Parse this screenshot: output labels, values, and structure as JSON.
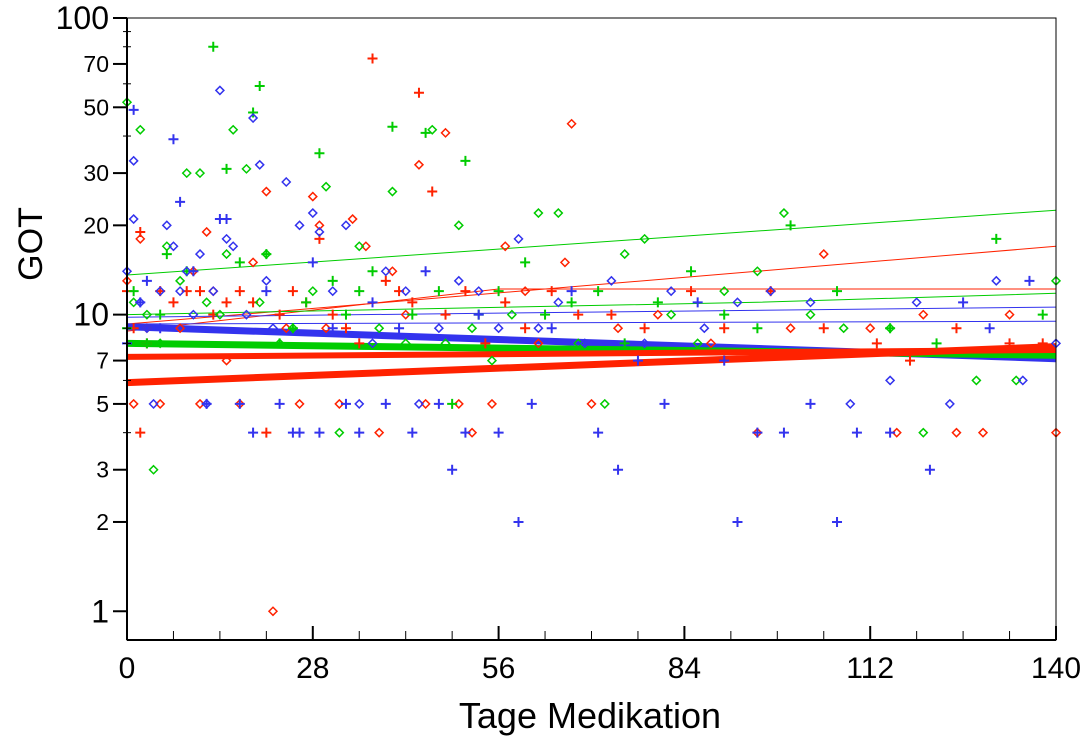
{
  "chart_data": {
    "type": "scatter",
    "title": "",
    "xlabel": "Tage Medikation",
    "ylabel": "GOT",
    "x_scale": "linear",
    "y_scale": "log",
    "xlim": [
      0,
      140
    ],
    "ylim": [
      0.8,
      100
    ],
    "x_ticks": [
      0,
      28,
      56,
      84,
      112,
      140
    ],
    "x_tick_labels": [
      "0",
      "28",
      "56",
      "84",
      "112",
      "140"
    ],
    "y_ticks": [
      1,
      2,
      3,
      5,
      7,
      10,
      20,
      30,
      50,
      70,
      100
    ],
    "y_tick_labels": [
      "1",
      "2",
      "3",
      "5",
      "7",
      "10",
      "20",
      "30",
      "50",
      "70",
      "100"
    ],
    "grid": false,
    "legend": "none",
    "colors": {
      "red": "#ff2200",
      "green": "#00cc00",
      "blue": "#3333ee"
    },
    "series": [
      {
        "color": "#ff2200",
        "marker": "plus",
        "points": [
          [
            0,
            12
          ],
          [
            1,
            9
          ],
          [
            2,
            4
          ],
          [
            2,
            19
          ],
          [
            3,
            8
          ],
          [
            5,
            12
          ],
          [
            7,
            11
          ],
          [
            9,
            12
          ],
          [
            11,
            12
          ],
          [
            13,
            10
          ],
          [
            15,
            11
          ],
          [
            17,
            12
          ],
          [
            19,
            11
          ],
          [
            21,
            4
          ],
          [
            23,
            10
          ],
          [
            25,
            12
          ],
          [
            27,
            11
          ],
          [
            29,
            18
          ],
          [
            31,
            10
          ],
          [
            33,
            9
          ],
          [
            35,
            8
          ],
          [
            37,
            73
          ],
          [
            39,
            13
          ],
          [
            41,
            12
          ],
          [
            43,
            11
          ],
          [
            44,
            56
          ],
          [
            46,
            26
          ],
          [
            48,
            10
          ],
          [
            51,
            12
          ],
          [
            54,
            8
          ],
          [
            57,
            11
          ],
          [
            60,
            9
          ],
          [
            64,
            12
          ],
          [
            68,
            10
          ],
          [
            73,
            10
          ],
          [
            78,
            9
          ],
          [
            85,
            12
          ],
          [
            90,
            9
          ],
          [
            97,
            12
          ],
          [
            105,
            9
          ],
          [
            113,
            8
          ],
          [
            118,
            7
          ],
          [
            125,
            9
          ],
          [
            133,
            8
          ],
          [
            138,
            8
          ]
        ]
      },
      {
        "color": "#ff2200",
        "marker": "diamond",
        "points": [
          [
            0,
            13
          ],
          [
            1,
            5
          ],
          [
            2,
            18
          ],
          [
            3,
            9
          ],
          [
            5,
            5
          ],
          [
            8,
            9
          ],
          [
            10,
            14
          ],
          [
            11,
            5
          ],
          [
            12,
            19
          ],
          [
            13,
            12
          ],
          [
            15,
            7
          ],
          [
            17,
            5
          ],
          [
            19,
            15
          ],
          [
            21,
            26
          ],
          [
            22,
            1
          ],
          [
            24,
            9
          ],
          [
            26,
            5
          ],
          [
            28,
            25
          ],
          [
            29,
            20
          ],
          [
            30,
            9
          ],
          [
            32,
            5
          ],
          [
            34,
            21
          ],
          [
            36,
            17
          ],
          [
            38,
            4
          ],
          [
            40,
            14
          ],
          [
            42,
            10
          ],
          [
            44,
            32
          ],
          [
            45,
            5
          ],
          [
            48,
            41
          ],
          [
            50,
            5
          ],
          [
            52,
            4
          ],
          [
            55,
            5
          ],
          [
            57,
            17
          ],
          [
            60,
            12
          ],
          [
            62,
            8
          ],
          [
            66,
            15
          ],
          [
            67,
            44
          ],
          [
            70,
            5
          ],
          [
            74,
            9
          ],
          [
            80,
            10
          ],
          [
            88,
            8
          ],
          [
            95,
            4
          ],
          [
            100,
            9
          ],
          [
            105,
            16
          ],
          [
            112,
            9
          ],
          [
            116,
            4
          ],
          [
            120,
            10
          ],
          [
            125,
            4
          ],
          [
            129,
            4
          ],
          [
            133,
            10
          ],
          [
            140,
            4
          ]
        ]
      },
      {
        "color": "#00cc00",
        "marker": "plus",
        "points": [
          [
            0,
            9
          ],
          [
            1,
            12
          ],
          [
            3,
            8
          ],
          [
            5,
            10
          ],
          [
            6,
            16
          ],
          [
            9,
            14
          ],
          [
            13,
            80
          ],
          [
            15,
            31
          ],
          [
            17,
            15
          ],
          [
            19,
            48
          ],
          [
            20,
            59
          ],
          [
            21,
            16
          ],
          [
            23,
            8
          ],
          [
            25,
            9
          ],
          [
            27,
            11
          ],
          [
            29,
            35
          ],
          [
            31,
            13
          ],
          [
            33,
            10
          ],
          [
            35,
            12
          ],
          [
            37,
            14
          ],
          [
            40,
            43
          ],
          [
            43,
            10
          ],
          [
            45,
            41
          ],
          [
            47,
            12
          ],
          [
            49,
            5
          ],
          [
            51,
            33
          ],
          [
            53,
            10
          ],
          [
            56,
            12
          ],
          [
            60,
            15
          ],
          [
            63,
            10
          ],
          [
            67,
            11
          ],
          [
            71,
            12
          ],
          [
            75,
            8
          ],
          [
            80,
            11
          ],
          [
            85,
            14
          ],
          [
            90,
            10
          ],
          [
            95,
            9
          ],
          [
            100,
            20
          ],
          [
            107,
            12
          ],
          [
            115,
            9
          ],
          [
            122,
            8
          ],
          [
            131,
            18
          ],
          [
            138,
            10
          ]
        ]
      },
      {
        "color": "#00cc00",
        "marker": "diamond",
        "points": [
          [
            0,
            52
          ],
          [
            1,
            11
          ],
          [
            2,
            42
          ],
          [
            3,
            10
          ],
          [
            4,
            3
          ],
          [
            5,
            8
          ],
          [
            6,
            17
          ],
          [
            8,
            13
          ],
          [
            9,
            30
          ],
          [
            11,
            30
          ],
          [
            12,
            11
          ],
          [
            14,
            10
          ],
          [
            15,
            16
          ],
          [
            16,
            42
          ],
          [
            18,
            31
          ],
          [
            20,
            11
          ],
          [
            21,
            16
          ],
          [
            23,
            8
          ],
          [
            25,
            9
          ],
          [
            28,
            12
          ],
          [
            30,
            27
          ],
          [
            32,
            4
          ],
          [
            35,
            17
          ],
          [
            38,
            9
          ],
          [
            40,
            26
          ],
          [
            42,
            8
          ],
          [
            46,
            42
          ],
          [
            48,
            8
          ],
          [
            50,
            20
          ],
          [
            52,
            9
          ],
          [
            55,
            7
          ],
          [
            58,
            10
          ],
          [
            62,
            22
          ],
          [
            65,
            22
          ],
          [
            68,
            8
          ],
          [
            72,
            5
          ],
          [
            75,
            16
          ],
          [
            78,
            18
          ],
          [
            82,
            10
          ],
          [
            86,
            8
          ],
          [
            90,
            12
          ],
          [
            95,
            14
          ],
          [
            99,
            22
          ],
          [
            103,
            10
          ],
          [
            108,
            9
          ],
          [
            115,
            9
          ],
          [
            120,
            4
          ],
          [
            128,
            6
          ],
          [
            134,
            6
          ],
          [
            140,
            13
          ]
        ]
      },
      {
        "color": "#3333ee",
        "marker": "plus",
        "points": [
          [
            0,
            8
          ],
          [
            1,
            49
          ],
          [
            2,
            11
          ],
          [
            3,
            13
          ],
          [
            5,
            9
          ],
          [
            7,
            39
          ],
          [
            8,
            24
          ],
          [
            10,
            14
          ],
          [
            12,
            5
          ],
          [
            14,
            21
          ],
          [
            15,
            21
          ],
          [
            17,
            5
          ],
          [
            19,
            4
          ],
          [
            21,
            12
          ],
          [
            23,
            5
          ],
          [
            25,
            4
          ],
          [
            26,
            4
          ],
          [
            28,
            15
          ],
          [
            29,
            4
          ],
          [
            31,
            9
          ],
          [
            33,
            5
          ],
          [
            35,
            4
          ],
          [
            37,
            11
          ],
          [
            39,
            5
          ],
          [
            41,
            9
          ],
          [
            43,
            4
          ],
          [
            45,
            14
          ],
          [
            47,
            5
          ],
          [
            49,
            3
          ],
          [
            51,
            4
          ],
          [
            53,
            10
          ],
          [
            56,
            4
          ],
          [
            59,
            2
          ],
          [
            61,
            5
          ],
          [
            64,
            9
          ],
          [
            67,
            12
          ],
          [
            71,
            4
          ],
          [
            74,
            3
          ],
          [
            77,
            7
          ],
          [
            81,
            5
          ],
          [
            86,
            11
          ],
          [
            90,
            7
          ],
          [
            92,
            2
          ],
          [
            95,
            4
          ],
          [
            99,
            4
          ],
          [
            103,
            5
          ],
          [
            107,
            2
          ],
          [
            110,
            4
          ],
          [
            115,
            4
          ],
          [
            121,
            3
          ],
          [
            126,
            11
          ],
          [
            130,
            9
          ],
          [
            136,
            13
          ]
        ]
      },
      {
        "color": "#3333ee",
        "marker": "diamond",
        "points": [
          [
            0,
            14
          ],
          [
            1,
            33
          ],
          [
            1,
            21
          ],
          [
            2,
            11
          ],
          [
            3,
            9
          ],
          [
            4,
            5
          ],
          [
            5,
            12
          ],
          [
            6,
            20
          ],
          [
            7,
            17
          ],
          [
            8,
            12
          ],
          [
            9,
            14
          ],
          [
            10,
            10
          ],
          [
            11,
            16
          ],
          [
            12,
            5
          ],
          [
            13,
            12
          ],
          [
            14,
            57
          ],
          [
            15,
            18
          ],
          [
            16,
            17
          ],
          [
            18,
            10
          ],
          [
            19,
            46
          ],
          [
            20,
            32
          ],
          [
            21,
            13
          ],
          [
            22,
            9
          ],
          [
            24,
            28
          ],
          [
            26,
            20
          ],
          [
            28,
            22
          ],
          [
            29,
            19
          ],
          [
            31,
            12
          ],
          [
            33,
            20
          ],
          [
            35,
            5
          ],
          [
            37,
            8
          ],
          [
            39,
            14
          ],
          [
            42,
            12
          ],
          [
            44,
            5
          ],
          [
            47,
            9
          ],
          [
            50,
            13
          ],
          [
            53,
            12
          ],
          [
            56,
            9
          ],
          [
            59,
            18
          ],
          [
            62,
            9
          ],
          [
            65,
            11
          ],
          [
            69,
            8
          ],
          [
            73,
            13
          ],
          [
            78,
            8
          ],
          [
            82,
            12
          ],
          [
            87,
            9
          ],
          [
            92,
            11
          ],
          [
            97,
            12
          ],
          [
            103,
            11
          ],
          [
            109,
            5
          ],
          [
            115,
            6
          ],
          [
            119,
            11
          ],
          [
            124,
            5
          ],
          [
            131,
            13
          ],
          [
            135,
            6
          ],
          [
            140,
            8
          ]
        ]
      }
    ],
    "lines": [
      {
        "color": "#00cc00",
        "width": 1,
        "x": [
          0,
          140
        ],
        "y": [
          13.6,
          22.5
        ]
      },
      {
        "color": "#ff2200",
        "width": 1,
        "x": [
          0,
          140
        ],
        "y": [
          9.3,
          17.0
        ]
      },
      {
        "color": "#ff2200",
        "width": 1,
        "x": [
          0,
          56,
          140
        ],
        "y": [
          8.8,
          12.2,
          12.2
        ]
      },
      {
        "color": "#00cc00",
        "width": 1,
        "x": [
          0,
          95,
          140
        ],
        "y": [
          10.0,
          11.0,
          11.8
        ]
      },
      {
        "color": "#3333ee",
        "width": 1,
        "x": [
          0,
          140
        ],
        "y": [
          9.8,
          10.6
        ]
      },
      {
        "color": "#3333ee",
        "width": 1,
        "x": [
          0,
          140
        ],
        "y": [
          9.3,
          9.5
        ]
      },
      {
        "color": "#3333ee",
        "width": 7,
        "x": [
          0,
          140
        ],
        "y": [
          9.1,
          7.1
        ]
      },
      {
        "color": "#00cc00",
        "width": 7,
        "x": [
          0,
          140
        ],
        "y": [
          8.0,
          7.3
        ]
      },
      {
        "color": "#ff2200",
        "width": 6,
        "x": [
          0,
          140
        ],
        "y": [
          7.2,
          7.6
        ]
      },
      {
        "color": "#ff2200",
        "width": 7,
        "x": [
          0,
          140
        ],
        "y": [
          5.9,
          7.8
        ]
      }
    ]
  }
}
